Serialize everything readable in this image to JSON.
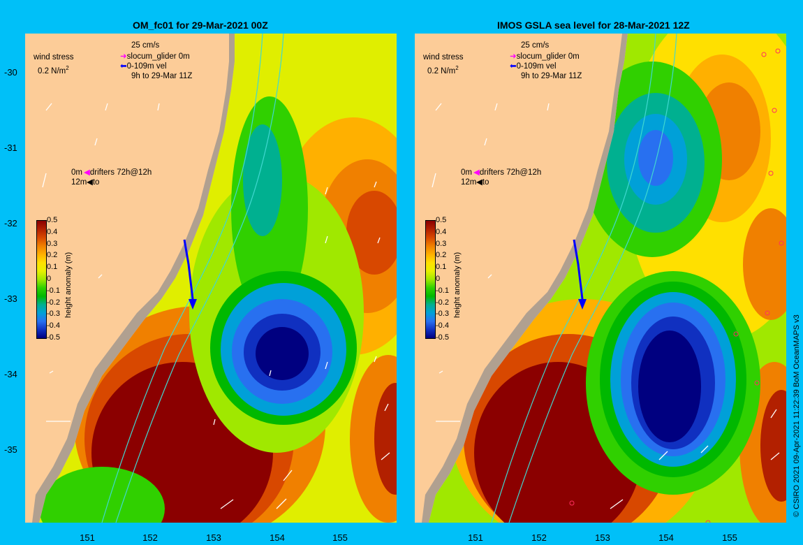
{
  "panels": [
    {
      "title": "OM_fc01 for 29-Mar-2021 00Z"
    },
    {
      "title": "IMOS GSLA sea level  for 28-Mar-2021 12Z"
    }
  ],
  "y_ticks": [
    "-30",
    "-31",
    "-32",
    "-33",
    "-34",
    "-35"
  ],
  "x_ticks": [
    "151",
    "152",
    "153",
    "154",
    "155"
  ],
  "legend": {
    "wind_label": "wind stress",
    "wind_scale": "0.2 N/m",
    "wind_scale_sup": "2",
    "vel_scale": "25 cm/s",
    "glider": "slocum_glider 0m",
    "vel": "0-109m vel",
    "time": "9h to 29-Mar 11Z",
    "drifter_0m": "0m",
    "drifter_label": "drifters 72h@12h",
    "drifter_12m": "12m",
    "drifter_to": "to"
  },
  "colorbar": {
    "title": "height anomaly (m)",
    "ticks": [
      "0.5",
      "0.4",
      "0.3",
      "0.2",
      "0.1",
      "0",
      "-0.1",
      "-0.2",
      "-0.3",
      "-0.4",
      "-0.5"
    ],
    "colors": [
      "#8b0000",
      "#b22000",
      "#d84800",
      "#f08000",
      "#ffb000",
      "#ffe000",
      "#e8f000",
      "#a0e800",
      "#30d000",
      "#00b800",
      "#00b090",
      "#00a0d8",
      "#2870f0",
      "#1030c0",
      "#000080"
    ]
  },
  "colors": {
    "land": "#fccc98",
    "background": "#00c0f8",
    "glider_arrow": "#0000ff",
    "glider_legend": "#ff00ff",
    "contour": "#40d8d0"
  },
  "credit": "© CSIRO 2021  09-Apr-2021 11:22:39 BoM OceanMAPS v3"
}
